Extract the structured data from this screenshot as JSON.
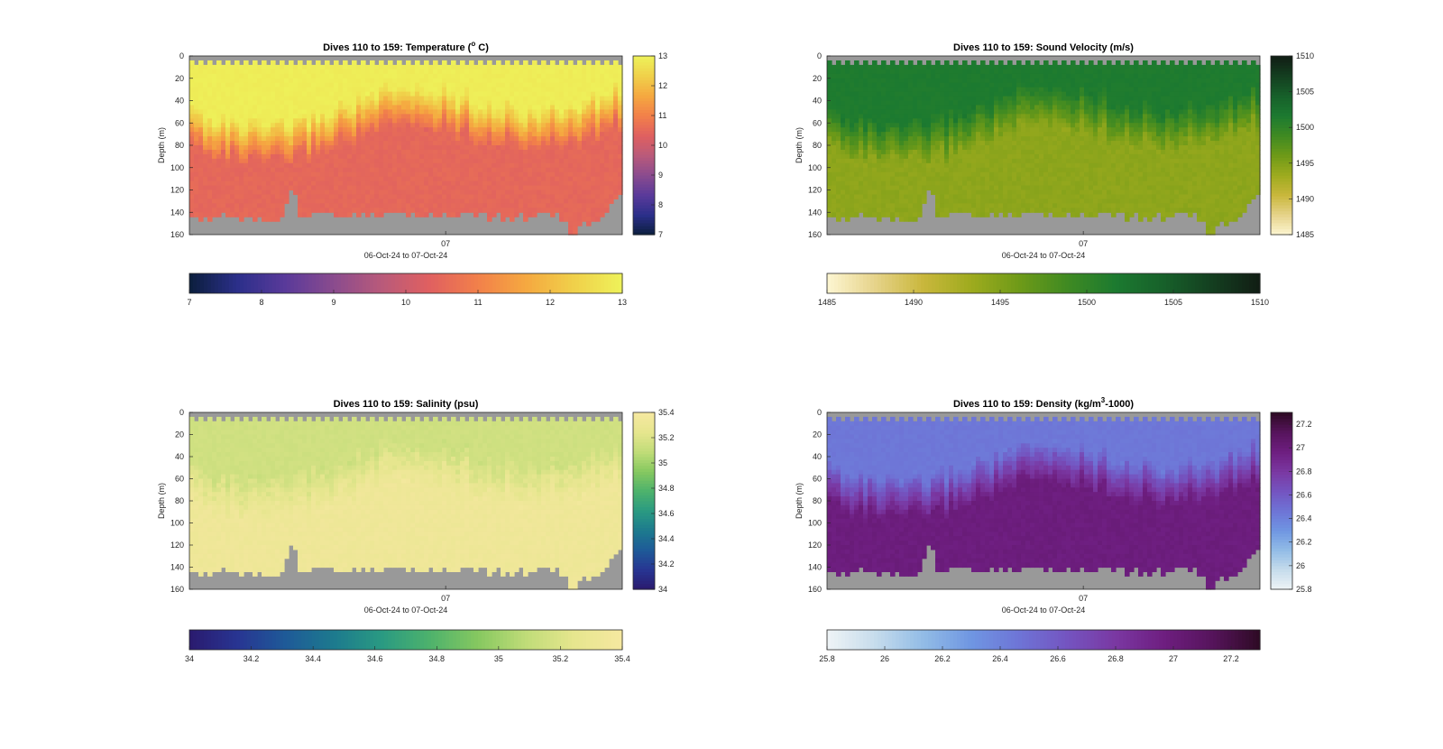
{
  "chart_data": [
    {
      "type": "heatmap",
      "title": "Dives 110 to 159: Temperature (",
      "title_superscript": "o",
      "title_suffix": " C)",
      "xlabel": "06-Oct-24 to 07-Oct-24",
      "xtick_labels": [
        "07"
      ],
      "ylabel": "Depth (m)",
      "ylim": [
        0,
        160
      ],
      "yticks": [
        "0",
        "20",
        "40",
        "60",
        "80",
        "100",
        "120",
        "140",
        "160"
      ],
      "clim": [
        7,
        13
      ],
      "side_colorbar_ticks": [
        "7",
        "8",
        "9",
        "10",
        "11",
        "12",
        "13"
      ],
      "bottom_colorbar_ticks": [
        "7",
        "8",
        "9",
        "10",
        "11",
        "12",
        "13"
      ],
      "colormap": [
        "#0b1e3c",
        "#2b2f8a",
        "#5a3a9a",
        "#8a4b8e",
        "#b95a7a",
        "#e06060",
        "#f2804a",
        "#f5a840",
        "#f0d04a",
        "#eef25a"
      ],
      "mixed_layer_value": 12.9,
      "deep_value": 10.5,
      "pattern": "warm"
    },
    {
      "type": "heatmap",
      "title": "Dives 110 to 159: Sound Velocity (m/s)",
      "xlabel": "06-Oct-24 to 07-Oct-24",
      "xtick_labels": [
        "07"
      ],
      "ylabel": "Depth (m)",
      "ylim": [
        0,
        160
      ],
      "yticks": [
        "0",
        "20",
        "40",
        "60",
        "80",
        "100",
        "120",
        "140",
        "160"
      ],
      "clim": [
        1485,
        1510
      ],
      "side_colorbar_ticks": [
        "1485",
        "1490",
        "1495",
        "1500",
        "1505",
        "1510"
      ],
      "bottom_colorbar_ticks": [
        "1485",
        "1490",
        "1495",
        "1500",
        "1505",
        "1510"
      ],
      "colormap": [
        "#fdf6d2",
        "#e6d38a",
        "#c9b73c",
        "#9eab1e",
        "#6e9a18",
        "#3f8a22",
        "#1c7a30",
        "#17602a",
        "#143f20",
        "#111d14"
      ],
      "mixed_layer_value": 1501.5,
      "deep_value": 1494.3,
      "pattern": "warm"
    },
    {
      "type": "heatmap",
      "title": "Dives 110 to 159: Salinity (psu)",
      "xlabel": "06-Oct-24 to 07-Oct-24",
      "xtick_labels": [
        "07"
      ],
      "ylabel": "Depth (m)",
      "ylim": [
        0,
        160
      ],
      "yticks": [
        "0",
        "20",
        "40",
        "60",
        "80",
        "100",
        "120",
        "140",
        "160"
      ],
      "clim": [
        34,
        35.4
      ],
      "side_colorbar_ticks": [
        "34",
        "34.2",
        "34.4",
        "34.6",
        "34.8",
        "35",
        "35.2",
        "35.4"
      ],
      "bottom_colorbar_ticks": [
        "34",
        "34.2",
        "34.4",
        "34.6",
        "34.8",
        "35",
        "35.2",
        "35.4"
      ],
      "colormap": [
        "#2a1a6e",
        "#283592",
        "#1e5a98",
        "#1d7a8e",
        "#2a9a82",
        "#4db26c",
        "#86c860",
        "#c0dc78",
        "#e6e68e",
        "#f6e8a0"
      ],
      "mixed_layer_value": 35.15,
      "deep_value": 35.33,
      "pattern": "salty"
    },
    {
      "type": "heatmap",
      "title": "Dives 110 to 159: Density (kg/m",
      "title_superscript": "3",
      "title_suffix": "-1000)",
      "xlabel": "06-Oct-24 to 07-Oct-24",
      "xtick_labels": [
        "07"
      ],
      "ylabel": "Depth (m)",
      "ylim": [
        0,
        160
      ],
      "yticks": [
        "0",
        "20",
        "40",
        "60",
        "80",
        "100",
        "120",
        "140",
        "160"
      ],
      "clim": [
        25.8,
        27.3
      ],
      "side_colorbar_ticks": [
        "25.8",
        "26",
        "26.2",
        "26.4",
        "26.6",
        "26.8",
        "27",
        "27.2"
      ],
      "bottom_colorbar_ticks": [
        "25.8",
        "26",
        "26.2",
        "26.4",
        "26.6",
        "26.8",
        "27",
        "27.2"
      ],
      "colormap": [
        "#eef4f6",
        "#c6dcec",
        "#92bce6",
        "#6f96e2",
        "#6e74d6",
        "#7454c0",
        "#7a38a2",
        "#6e1e80",
        "#56145c",
        "#2e0a24"
      ],
      "mixed_layer_value": 26.45,
      "deep_value": 26.98,
      "pattern": "dense"
    }
  ],
  "colors": {
    "no_data": "#999999",
    "frame": "#262626"
  }
}
